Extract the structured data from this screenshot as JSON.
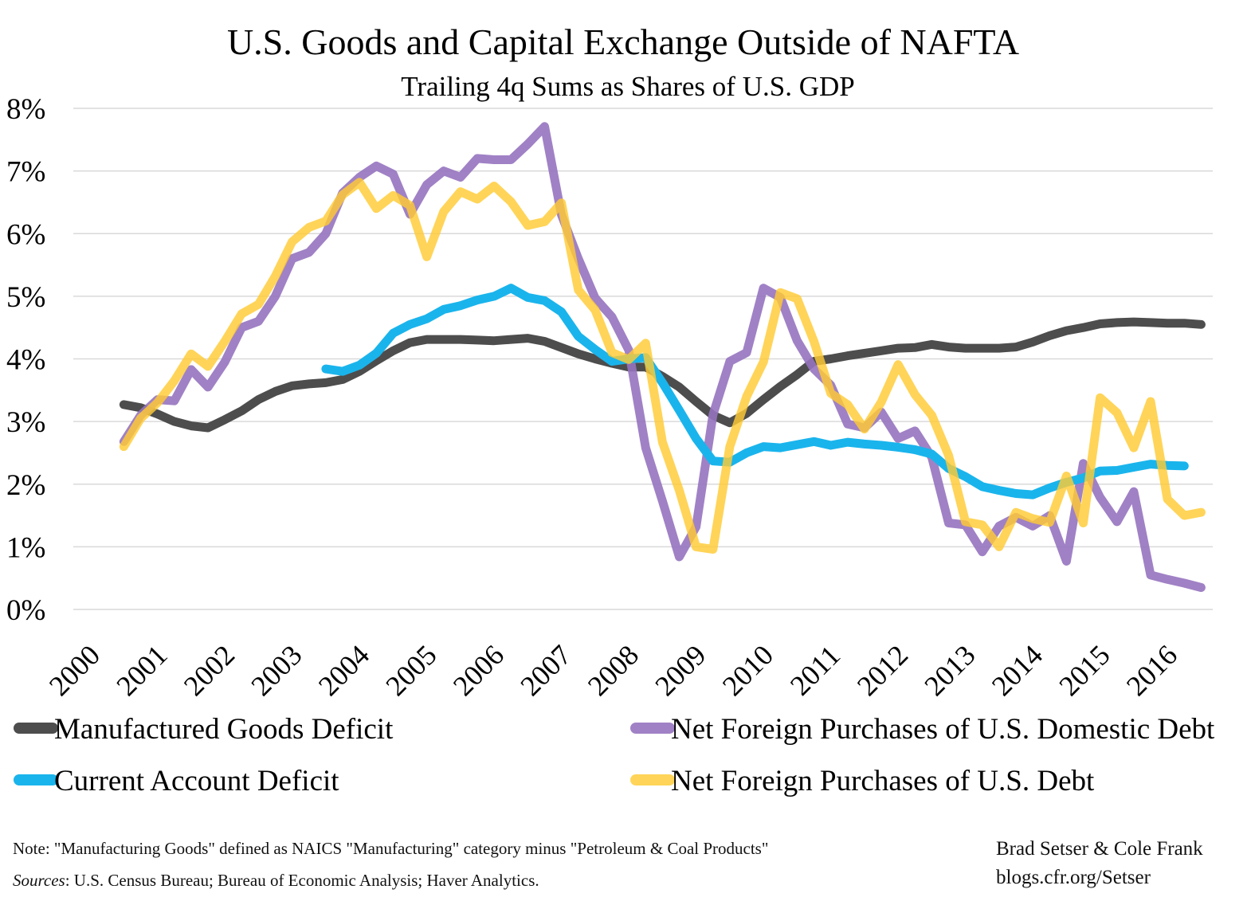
{
  "chart_data": {
    "type": "line",
    "title": "U.S. Goods and Capital Exchange Outside of NAFTA",
    "subtitle": "Trailing 4q Sums as Shares of U.S. GDP",
    "x_tick_labels": [
      "2000",
      "2001",
      "2002",
      "2003",
      "2004",
      "2005",
      "2006",
      "2007",
      "2008",
      "2009",
      "2010",
      "2011",
      "2012",
      "2013",
      "2014",
      "2015",
      "2016"
    ],
    "y_tick_labels": [
      "0%",
      "1%",
      "2%",
      "3%",
      "4%",
      "5%",
      "6%",
      "7%",
      "8%"
    ],
    "ylim": [
      0,
      8
    ],
    "xlim": [
      2000.0,
      2016.75
    ],
    "grid": true,
    "legend_placement": "bottom",
    "series": [
      {
        "name": "Manufactured Goods Deficit",
        "color": "#4d4d4d",
        "x": [
          2000.75,
          2001.0,
          2001.25,
          2001.5,
          2001.75,
          2002.0,
          2002.25,
          2002.5,
          2002.75,
          2003.0,
          2003.25,
          2003.5,
          2003.75,
          2004.0,
          2004.25,
          2004.5,
          2004.75,
          2005.0,
          2005.25,
          2005.5,
          2005.75,
          2006.0,
          2006.25,
          2006.5,
          2006.75,
          2007.0,
          2007.25,
          2007.5,
          2007.75,
          2008.0,
          2008.25,
          2008.5,
          2008.75,
          2009.0,
          2009.25,
          2009.5,
          2009.75,
          2010.0,
          2010.25,
          2010.5,
          2010.75,
          2011.0,
          2011.25,
          2011.5,
          2011.75,
          2012.0,
          2012.25,
          2012.5,
          2012.75,
          2013.0,
          2013.25,
          2013.5,
          2013.75,
          2014.0,
          2014.25,
          2014.5,
          2014.75,
          2015.0,
          2015.25,
          2015.5,
          2015.75,
          2016.0,
          2016.25,
          2016.5,
          2016.75
        ],
        "values": [
          3.27,
          3.22,
          3.12,
          3.0,
          2.93,
          2.9,
          3.03,
          3.17,
          3.35,
          3.48,
          3.57,
          3.6,
          3.62,
          3.67,
          3.8,
          3.97,
          4.13,
          4.26,
          4.31,
          4.31,
          4.31,
          4.3,
          4.29,
          4.31,
          4.33,
          4.28,
          4.18,
          4.08,
          4.0,
          3.93,
          3.87,
          3.87,
          3.72,
          3.55,
          3.32,
          3.1,
          2.98,
          3.13,
          3.35,
          3.56,
          3.75,
          3.96,
          4.0,
          4.05,
          4.09,
          4.13,
          4.17,
          4.18,
          4.23,
          4.19,
          4.17,
          4.17,
          4.17,
          4.19,
          4.27,
          4.37,
          4.45,
          4.5,
          4.56,
          4.58,
          4.59,
          4.58,
          4.57,
          4.57,
          4.55
        ]
      },
      {
        "name": "Net Foreign Purchases of U.S. Domestic Debt",
        "color": "#9673bf",
        "opacity": 0.9,
        "x": [
          2000.75,
          2001.0,
          2001.25,
          2001.5,
          2001.75,
          2002.0,
          2002.25,
          2002.5,
          2002.75,
          2003.0,
          2003.25,
          2003.5,
          2003.75,
          2004.0,
          2004.25,
          2004.5,
          2004.75,
          2005.0,
          2005.25,
          2005.5,
          2005.75,
          2006.0,
          2006.25,
          2006.5,
          2006.75,
          2007.0,
          2007.25,
          2007.5,
          2007.75,
          2008.0,
          2008.25,
          2008.5,
          2008.75,
          2009.0,
          2009.25,
          2009.5,
          2009.75,
          2010.0,
          2010.25,
          2010.5,
          2010.75,
          2011.0,
          2011.25,
          2011.5,
          2011.75,
          2012.0,
          2012.25,
          2012.5,
          2012.75,
          2013.0,
          2013.25,
          2013.5,
          2013.75,
          2014.0,
          2014.25,
          2014.5,
          2014.75,
          2015.0,
          2015.25,
          2015.5,
          2015.75,
          2016.0,
          2016.25,
          2016.5,
          2016.75
        ],
        "values": [
          2.68,
          3.1,
          3.35,
          3.33,
          3.83,
          3.55,
          3.95,
          4.5,
          4.6,
          5.0,
          5.6,
          5.7,
          6.0,
          6.65,
          6.9,
          7.08,
          6.95,
          6.31,
          6.78,
          7.0,
          6.9,
          7.2,
          7.18,
          7.18,
          7.43,
          7.71,
          6.3,
          5.6,
          4.97,
          4.67,
          4.14,
          2.58,
          1.73,
          0.84,
          1.32,
          3.11,
          3.96,
          4.1,
          5.13,
          4.98,
          4.29,
          3.84,
          3.58,
          2.96,
          2.9,
          3.15,
          2.73,
          2.85,
          2.43,
          1.38,
          1.35,
          0.92,
          1.33,
          1.47,
          1.33,
          1.5,
          0.77,
          2.33,
          1.79,
          1.4,
          1.88,
          0.55,
          0.48,
          0.42,
          0.35
        ]
      },
      {
        "name": "Current Account Deficit",
        "color": "#1ab4ec",
        "x": [
          2003.75,
          2004.0,
          2004.25,
          2004.5,
          2004.75,
          2005.0,
          2005.25,
          2005.5,
          2005.75,
          2006.0,
          2006.25,
          2006.5,
          2006.75,
          2007.0,
          2007.25,
          2007.5,
          2007.75,
          2008.0,
          2008.25,
          2008.5,
          2008.75,
          2009.0,
          2009.25,
          2009.5,
          2009.75,
          2010.0,
          2010.25,
          2010.5,
          2010.75,
          2011.0,
          2011.25,
          2011.5,
          2011.75,
          2012.0,
          2012.25,
          2012.5,
          2012.75,
          2013.0,
          2013.25,
          2013.5,
          2013.75,
          2014.0,
          2014.25,
          2014.5,
          2014.75,
          2015.0,
          2015.25,
          2015.5,
          2015.75,
          2016.0,
          2016.25,
          2016.5
        ],
        "values": [
          3.84,
          3.8,
          3.9,
          4.09,
          4.41,
          4.55,
          4.64,
          4.79,
          4.85,
          4.94,
          5.0,
          5.13,
          4.98,
          4.93,
          4.75,
          4.36,
          4.15,
          3.96,
          4.0,
          4.02,
          3.62,
          3.18,
          2.73,
          2.37,
          2.35,
          2.5,
          2.6,
          2.58,
          2.63,
          2.68,
          2.62,
          2.67,
          2.64,
          2.62,
          2.59,
          2.55,
          2.48,
          2.25,
          2.12,
          1.96,
          1.9,
          1.85,
          1.83,
          1.94,
          2.03,
          2.1,
          2.21,
          2.22,
          2.27,
          2.32,
          2.3,
          2.29
        ]
      },
      {
        "name": "Net Foreign Purchases of U.S. Debt",
        "color": "#ffcb33",
        "opacity": 0.82,
        "x": [
          2000.75,
          2001.0,
          2001.25,
          2001.5,
          2001.75,
          2002.0,
          2002.25,
          2002.5,
          2002.75,
          2003.0,
          2003.25,
          2003.5,
          2003.75,
          2004.0,
          2004.25,
          2004.5,
          2004.75,
          2005.0,
          2005.25,
          2005.5,
          2005.75,
          2006.0,
          2006.25,
          2006.5,
          2006.75,
          2007.0,
          2007.25,
          2007.5,
          2007.75,
          2008.0,
          2008.25,
          2008.5,
          2008.75,
          2009.0,
          2009.25,
          2009.5,
          2009.75,
          2010.0,
          2010.25,
          2010.5,
          2010.75,
          2011.0,
          2011.25,
          2011.5,
          2011.75,
          2012.0,
          2012.25,
          2012.5,
          2012.75,
          2013.0,
          2013.25,
          2013.5,
          2013.75,
          2014.0,
          2014.25,
          2014.5,
          2014.75,
          2015.0,
          2015.25,
          2015.5,
          2015.75,
          2016.0,
          2016.25,
          2016.5,
          2016.75
        ],
        "values": [
          2.6,
          3.05,
          3.3,
          3.65,
          4.08,
          3.88,
          4.28,
          4.72,
          4.87,
          5.32,
          5.87,
          6.1,
          6.2,
          6.62,
          6.82,
          6.4,
          6.61,
          6.45,
          5.63,
          6.35,
          6.67,
          6.55,
          6.76,
          6.51,
          6.13,
          6.19,
          6.49,
          5.1,
          4.78,
          4.1,
          3.99,
          4.25,
          2.67,
          1.9,
          1.0,
          0.96,
          2.6,
          3.4,
          3.95,
          5.06,
          4.96,
          4.28,
          3.45,
          3.27,
          2.88,
          3.31,
          3.91,
          3.43,
          3.1,
          2.46,
          1.4,
          1.35,
          1.0,
          1.55,
          1.45,
          1.39,
          2.13,
          1.38,
          3.38,
          3.14,
          2.58,
          3.32,
          1.76,
          1.5,
          1.55
        ]
      }
    ]
  },
  "footer": {
    "note": "Note: \"Manufacturing Goods\" defined as NAICS \"Manufacturing\" category minus \"Petroleum & Coal Products\"",
    "sources_label": "Sources",
    "sources_text": ": U.S. Census Bureau; Bureau of Economic Analysis; Haver Analytics.",
    "credit_names": "Brad Setser & Cole Frank",
    "credit_url": "blogs.cfr.org/Setser"
  }
}
